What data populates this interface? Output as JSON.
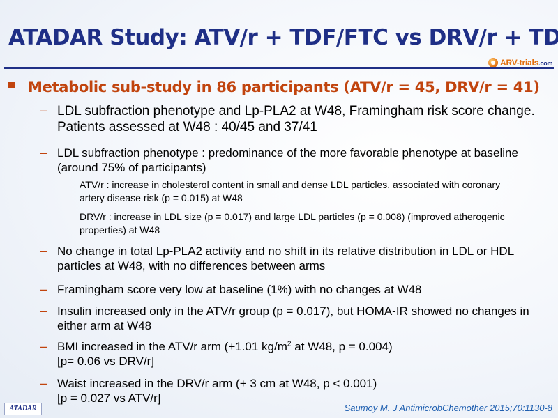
{
  "slide": {
    "title": "ATADAR Study: ATV/r + TDF/FTC vs DRV/r + TDF/FTC",
    "logo": {
      "brand": "ARV-trials",
      "suffix": ".com"
    },
    "level1": "Metabolic sub-study in 86 participants (ATV/r = 45, DRV/r = 41)",
    "items": [
      {
        "text": "LDL subfraction phenotype and Lp-PLA2 at W48, Framingham risk score change. Patients assessed at W48 : 40/45 and 37/41"
      },
      {
        "text": "LDL subfraction phenotype : predominance of the more favorable phenotype at baseline (around 75% of participants)"
      },
      {
        "text": "ATV/r : increase in cholesterol content in small and dense LDL particles, associated with coronary artery disease risk (p = 0.015) at W48"
      },
      {
        "text": "DRV/r : increase in LDL size (p = 0.017) and large LDL particles (p = 0.008) (improved atherogenic properties) at W48"
      },
      {
        "text": "No change in total Lp-PLA2 activity and no shift in its relative distribution in LDL or HDL particles at W48, with no differences between arms"
      },
      {
        "text": "Framingham score very low at baseline (1%) with no changes at W48"
      },
      {
        "text": "Insulin increased only in the ATV/r group (p = 0.017), but HOMA-IR showed no changes in either arm at W48"
      },
      {
        "pre": "BMI increased in the ATV/r arm (+1.01 kg/m",
        "sup": "2",
        "post": " at W48, p = 0.004)",
        "line2": "[p= 0.06 vs DRV/r]"
      },
      {
        "text": "Waist increased in the DRV/r arm (+ 3 cm at W48, p < 0.001)",
        "line2": "[p = 0.027 vs ATV/r]"
      }
    ],
    "dash": "–",
    "badge": "ATADAR",
    "reference": "Saumoy M. J AntimicrobChemother 2015;70:1130-8",
    "colors": {
      "title": "#1f2f86",
      "accent": "#c1440e",
      "reference": "#1f5fb0"
    }
  }
}
